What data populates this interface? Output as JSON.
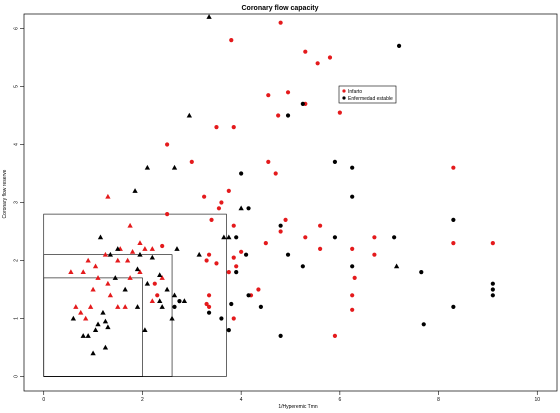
{
  "chart_data": {
    "type": "scatter",
    "title": "Coronary flow capacity",
    "xlabel": "1/Hyperemic Tmn",
    "ylabel": "Coronary flow reserve",
    "xlim": [
      -0.4,
      10.4
    ],
    "ylim": [
      -0.25,
      6.25
    ],
    "xticks": [
      "0",
      "2",
      "4",
      "6",
      "8",
      "10"
    ],
    "yticks": [
      "0",
      "1",
      "2",
      "3",
      "4",
      "5",
      "6"
    ],
    "legend": {
      "placement": "top-right",
      "entries": [
        {
          "label": "Infarto",
          "color": "#e41a1c"
        },
        {
          "label": "Enfermedad estable",
          "color": "#000000"
        }
      ]
    },
    "zone_boxes": [
      {
        "x": [
          0,
          3.7
        ],
        "y": [
          0,
          2.8
        ]
      },
      {
        "x": [
          0,
          2.6
        ],
        "y": [
          0,
          2.1
        ]
      },
      {
        "x": [
          0,
          2.0
        ],
        "y": [
          0,
          1.7
        ]
      }
    ],
    "series": [
      {
        "name": "Infarto",
        "color": "#e41a1c",
        "circles": [
          [
            4.8,
            6.1
          ],
          [
            3.8,
            5.8
          ],
          [
            5.3,
            5.6
          ],
          [
            5.8,
            5.5
          ],
          [
            5.55,
            5.4
          ],
          [
            4.95,
            4.9
          ],
          [
            4.55,
            4.85
          ],
          [
            5.3,
            4.7
          ],
          [
            6.0,
            4.55
          ],
          [
            4.75,
            4.5
          ],
          [
            3.5,
            4.3
          ],
          [
            3.85,
            4.3
          ],
          [
            2.5,
            4.0
          ],
          [
            3.0,
            3.7
          ],
          [
            4.55,
            3.7
          ],
          [
            4.7,
            3.5
          ],
          [
            8.3,
            3.6
          ],
          [
            3.75,
            3.2
          ],
          [
            3.25,
            3.1
          ],
          [
            3.6,
            3.0
          ],
          [
            3.55,
            2.9
          ],
          [
            2.5,
            2.8
          ],
          [
            3.4,
            2.7
          ],
          [
            3.85,
            2.6
          ],
          [
            4.9,
            2.7
          ],
          [
            5.6,
            2.6
          ],
          [
            4.8,
            2.5
          ],
          [
            5.3,
            2.4
          ],
          [
            6.7,
            2.4
          ],
          [
            8.3,
            2.3
          ],
          [
            9.1,
            2.3
          ],
          [
            4.5,
            2.3
          ],
          [
            2.4,
            2.25
          ],
          [
            4.0,
            2.15
          ],
          [
            3.35,
            2.1
          ],
          [
            6.25,
            2.2
          ],
          [
            5.6,
            2.2
          ],
          [
            3.3,
            2.0
          ],
          [
            3.85,
            2.05
          ],
          [
            3.5,
            1.95
          ],
          [
            6.7,
            2.1
          ],
          [
            3.75,
            1.8
          ],
          [
            3.9,
            1.9
          ],
          [
            6.3,
            1.7
          ],
          [
            2.25,
            1.6
          ],
          [
            6.25,
            1.4
          ],
          [
            4.35,
            1.5
          ],
          [
            3.35,
            1.4
          ],
          [
            2.3,
            1.4
          ],
          [
            3.35,
            1.2
          ],
          [
            6.25,
            1.15
          ],
          [
            4.2,
            1.4
          ],
          [
            3.85,
            1.0
          ],
          [
            5.9,
            0.7
          ],
          [
            3.3,
            1.25
          ]
        ],
        "triangles": [
          [
            1.3,
            3.1
          ],
          [
            1.75,
            2.6
          ],
          [
            1.95,
            2.3
          ],
          [
            1.55,
            2.2
          ],
          [
            1.8,
            2.15
          ],
          [
            1.25,
            2.1
          ],
          [
            0.9,
            2.0
          ],
          [
            1.5,
            2.0
          ],
          [
            1.7,
            2.0
          ],
          [
            1.05,
            1.9
          ],
          [
            2.05,
            2.2
          ],
          [
            2.2,
            2.2
          ],
          [
            0.8,
            1.8
          ],
          [
            1.1,
            1.7
          ],
          [
            0.55,
            1.8
          ],
          [
            1.95,
            1.8
          ],
          [
            2.4,
            1.7
          ],
          [
            1.3,
            1.6
          ],
          [
            1.0,
            1.5
          ],
          [
            1.75,
            1.7
          ],
          [
            1.35,
            1.4
          ],
          [
            2.2,
            1.3
          ],
          [
            0.65,
            1.2
          ],
          [
            0.95,
            1.2
          ],
          [
            1.5,
            1.2
          ],
          [
            1.65,
            1.2
          ],
          [
            0.75,
            1.1
          ],
          [
            0.85,
            1.0
          ]
        ]
      },
      {
        "name": "Enfermedad estable",
        "color": "#000000",
        "circles": [
          [
            7.2,
            5.7
          ],
          [
            5.25,
            4.7
          ],
          [
            4.95,
            4.5
          ],
          [
            4.0,
            3.5
          ],
          [
            5.9,
            3.7
          ],
          [
            6.25,
            3.6
          ],
          [
            6.25,
            3.1
          ],
          [
            4.15,
            2.9
          ],
          [
            4.8,
            2.6
          ],
          [
            8.3,
            2.7
          ],
          [
            3.9,
            2.4
          ],
          [
            5.9,
            2.4
          ],
          [
            7.1,
            2.4
          ],
          [
            4.1,
            2.1
          ],
          [
            4.95,
            2.1
          ],
          [
            5.25,
            1.9
          ],
          [
            3.9,
            1.8
          ],
          [
            6.25,
            1.9
          ],
          [
            7.65,
            1.8
          ],
          [
            9.1,
            1.6
          ],
          [
            9.1,
            1.5
          ],
          [
            9.1,
            1.4
          ],
          [
            4.15,
            1.4
          ],
          [
            4.4,
            1.2
          ],
          [
            3.8,
            1.25
          ],
          [
            8.3,
            1.2
          ],
          [
            3.35,
            1.1
          ],
          [
            3.6,
            1.0
          ],
          [
            2.75,
            1.3
          ],
          [
            2.65,
            1.2
          ],
          [
            7.7,
            0.9
          ],
          [
            4.8,
            0.7
          ],
          [
            3.75,
            0.8
          ]
        ],
        "triangles": [
          [
            3.35,
            6.2
          ],
          [
            2.95,
            4.5
          ],
          [
            2.1,
            3.6
          ],
          [
            2.65,
            3.6
          ],
          [
            1.85,
            3.2
          ],
          [
            4.0,
            2.9
          ],
          [
            1.15,
            2.4
          ],
          [
            1.5,
            2.2
          ],
          [
            3.75,
            2.4
          ],
          [
            3.65,
            2.4
          ],
          [
            1.35,
            2.1
          ],
          [
            2.7,
            2.2
          ],
          [
            3.15,
            2.1
          ],
          [
            1.95,
            2.1
          ],
          [
            2.2,
            2.05
          ],
          [
            1.9,
            1.85
          ],
          [
            2.35,
            1.75
          ],
          [
            1.45,
            1.7
          ],
          [
            2.1,
            1.6
          ],
          [
            2.5,
            1.5
          ],
          [
            1.65,
            1.5
          ],
          [
            2.65,
            1.4
          ],
          [
            2.35,
            1.3
          ],
          [
            2.85,
            1.3
          ],
          [
            2.4,
            1.2
          ],
          [
            1.9,
            1.2
          ],
          [
            1.2,
            1.1
          ],
          [
            2.6,
            1.0
          ],
          [
            1.1,
            0.9
          ],
          [
            1.25,
            0.95
          ],
          [
            1.05,
            0.8
          ],
          [
            0.8,
            0.7
          ],
          [
            0.9,
            0.7
          ],
          [
            1.25,
            0.5
          ],
          [
            1.0,
            0.4
          ],
          [
            1.3,
            0.85
          ],
          [
            2.05,
            0.8
          ],
          [
            7.15,
            1.9
          ],
          [
            0.6,
            1.0
          ]
        ]
      }
    ]
  }
}
